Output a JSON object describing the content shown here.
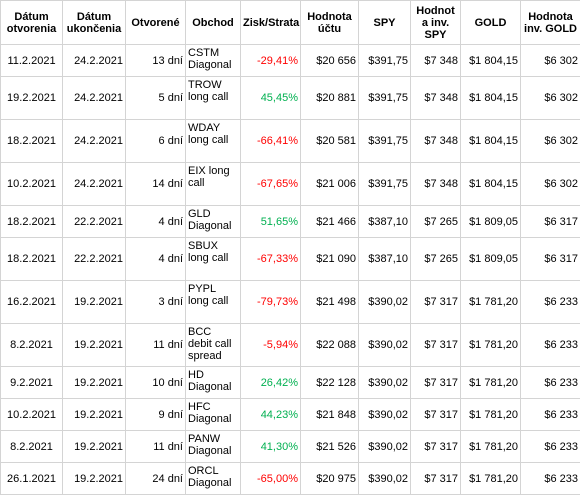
{
  "table": {
    "header": [
      "Dátum otvorenia",
      "Dátum ukončenia",
      "Otvorené",
      "Obchod",
      "Zisk/Strata",
      "Hodnota účtu",
      "SPY",
      "Hodnot a inv. SPY",
      "GOLD",
      "Hodnota inv. GOLD"
    ],
    "rows": [
      [
        "11.2.2021",
        "24.2.2021",
        "13 dní",
        "CSTM Diagonal",
        "-29,41%",
        "$20 656",
        "$391,75",
        "$7 348",
        "$1 804,15",
        "$6 302"
      ],
      [
        "19.2.2021",
        "24.2.2021",
        "5 dní",
        "TROW long call",
        "45,45%",
        "$20 881",
        "$391,75",
        "$7 348",
        "$1 804,15",
        "$6 302"
      ],
      [
        "18.2.2021",
        "24.2.2021",
        "6 dní",
        "WDAY long call",
        "-66,41%",
        "$20 581",
        "$391,75",
        "$7 348",
        "$1 804,15",
        "$6 302"
      ],
      [
        "10.2.2021",
        "24.2.2021",
        "14 dní",
        "EIX long call",
        "-67,65%",
        "$21 006",
        "$391,75",
        "$7 348",
        "$1 804,15",
        "$6 302"
      ],
      [
        "18.2.2021",
        "22.2.2021",
        "4 dní",
        "GLD Diagonal",
        "51,65%",
        "$21 466",
        "$387,10",
        "$7 265",
        "$1 809,05",
        "$6 317"
      ],
      [
        "18.2.2021",
        "22.2.2021",
        "4 dní",
        "SBUX long call",
        "-67,33%",
        "$21 090",
        "$387,10",
        "$7 265",
        "$1 809,05",
        "$6 317"
      ],
      [
        "16.2.2021",
        "19.2.2021",
        "3 dní",
        "PYPL long call",
        "-79,73%",
        "$21 498",
        "$390,02",
        "$7 317",
        "$1 781,20",
        "$6 233"
      ],
      [
        "8.2.2021",
        "19.2.2021",
        "11 dní",
        "BCC debit call spread",
        "-5,94%",
        "$22 088",
        "$390,02",
        "$7 317",
        "$1 781,20",
        "$6 233"
      ],
      [
        "9.2.2021",
        "19.2.2021",
        "10 dní",
        "HD Diagonal",
        "26,42%",
        "$22 128",
        "$390,02",
        "$7 317",
        "$1 781,20",
        "$6 233"
      ],
      [
        "10.2.2021",
        "19.2.2021",
        "9 dní",
        "HFC Diagonal",
        "44,23%",
        "$21 848",
        "$390,02",
        "$7 317",
        "$1 781,20",
        "$6 233"
      ],
      [
        "8.2.2021",
        "19.2.2021",
        "11 dní",
        "PANW Diagonal",
        "41,30%",
        "$21 526",
        "$390,02",
        "$7 317",
        "$1 781,20",
        "$6 233"
      ],
      [
        "26.1.2021",
        "19.2.2021",
        "24 dní",
        "ORCL Diagonal",
        "-65,00%",
        "$20 975",
        "$390,02",
        "$7 317",
        "$1 781,20",
        "$6 233"
      ]
    ]
  }
}
